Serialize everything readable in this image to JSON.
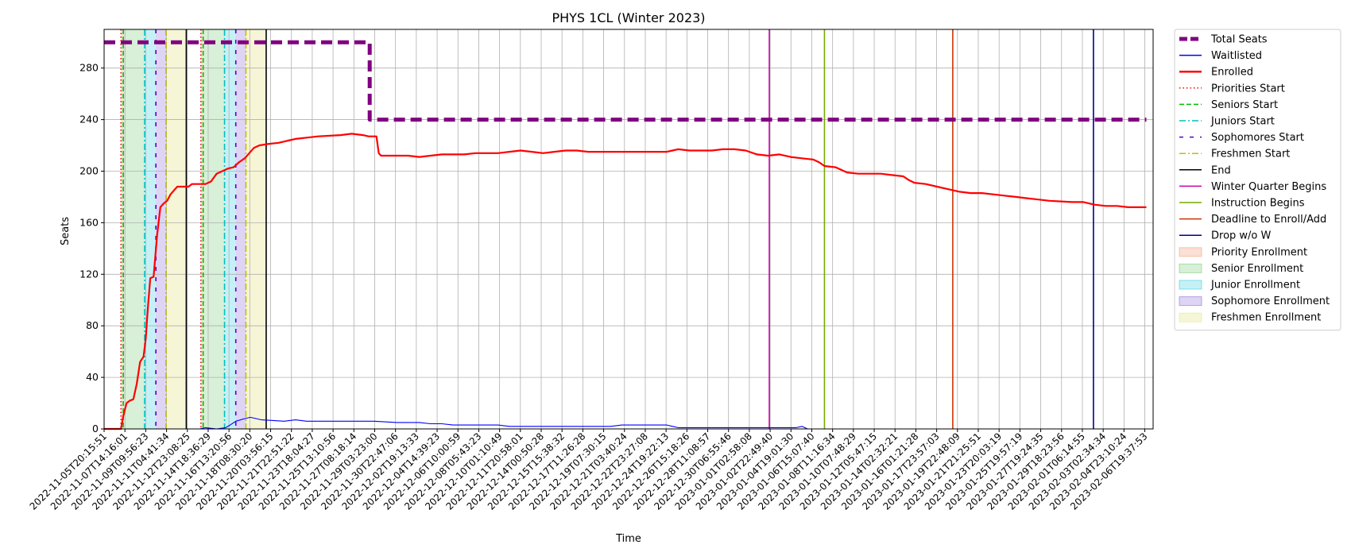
{
  "chart_data": {
    "type": "line",
    "title": "PHYS 1CL (Winter 2023)",
    "xlabel": "Time",
    "ylabel": "Seats",
    "x_range": [
      0,
      93.2
    ],
    "ylim": [
      0,
      310
    ],
    "y_ticks": [
      0,
      40,
      80,
      120,
      160,
      200,
      240,
      280
    ],
    "grid": true,
    "legend_position": "outside-right",
    "x_tick_labels": [
      "2022-11-05T20:15:51",
      "2022-11-07T14:16:01",
      "2022-11-09T09:56:23",
      "2022-11-11T04:41:34",
      "2022-11-12T23:08:25",
      "2022-11-14T18:36:29",
      "2022-11-16T13:20:56",
      "2022-11-18T08:30:20",
      "2022-11-20T03:56:15",
      "2022-11-21T22:51:22",
      "2022-11-23T18:04:27",
      "2022-11-25T13:10:56",
      "2022-11-27T08:18:14",
      "2022-11-29T03:23:00",
      "2022-11-30T22:47:06",
      "2022-12-02T19:13:33",
      "2022-12-04T14:39:23",
      "2022-12-06T10:00:59",
      "2022-12-08T05:43:23",
      "2022-12-10T01:10:49",
      "2022-12-11T20:58:01",
      "2022-12-14T00:50:28",
      "2022-12-15T15:38:32",
      "2022-12-17T11:26:28",
      "2022-12-19T07:30:15",
      "2022-12-21T03:40:24",
      "2022-12-22T23:27:08",
      "2022-12-24T19:22:13",
      "2022-12-26T15:18:26",
      "2022-12-28T11:08:57",
      "2022-12-30T06:55:46",
      "2023-01-01T02:58:08",
      "2023-01-02T22:49:40",
      "2023-01-04T19:01:30",
      "2023-01-06T15:07:40",
      "2023-01-08T11:16:34",
      "2023-01-10T07:48:29",
      "2023-01-12T05:47:15",
      "2023-01-14T02:32:21",
      "2023-01-16T01:21:28",
      "2023-01-17T23:57:03",
      "2023-01-19T22:48:09",
      "2023-01-21T21:25:51",
      "2023-01-23T20:03:19",
      "2023-01-25T19:57:19",
      "2023-01-27T19:24:35",
      "2023-01-29T18:23:56",
      "2023-02-01T06:14:55",
      "2023-02-03T02:34:34",
      "2023-02-04T23:10:24",
      "2023-02-06T19:37:53"
    ],
    "series": [
      {
        "name": "Total Seats",
        "color": "#800080",
        "style": "dashed-thick",
        "points": [
          [
            0,
            300
          ],
          [
            23.6,
            300
          ],
          [
            23.6,
            240
          ],
          [
            92.6,
            240
          ]
        ]
      },
      {
        "name": "Waitlisted",
        "color": "#0000ff",
        "style": "solid-thin",
        "points": [
          [
            0,
            0
          ],
          [
            8.5,
            0
          ],
          [
            9,
            1
          ],
          [
            10,
            0
          ],
          [
            10.8,
            1
          ],
          [
            11.2,
            3
          ],
          [
            11.7,
            6
          ],
          [
            12.5,
            8
          ],
          [
            13,
            9
          ],
          [
            13.5,
            8
          ],
          [
            14,
            7
          ],
          [
            16,
            6
          ],
          [
            17,
            7
          ],
          [
            18,
            6
          ],
          [
            22,
            6
          ],
          [
            24,
            6
          ],
          [
            26,
            5
          ],
          [
            28,
            5
          ],
          [
            29,
            4
          ],
          [
            30,
            4
          ],
          [
            31,
            3
          ],
          [
            35,
            3
          ],
          [
            36,
            2
          ],
          [
            45,
            2
          ],
          [
            46,
            3
          ],
          [
            50,
            3
          ],
          [
            50.5,
            2
          ],
          [
            51,
            1
          ],
          [
            60,
            1
          ],
          [
            61.5,
            1
          ],
          [
            62,
            2
          ],
          [
            62.5,
            0
          ],
          [
            92.6,
            0
          ]
        ]
      },
      {
        "name": "Enrolled",
        "color": "#ff0000",
        "style": "solid-thick",
        "points": [
          [
            0,
            0
          ],
          [
            1.5,
            0
          ],
          [
            1.7,
            10
          ],
          [
            2,
            20
          ],
          [
            2.3,
            22
          ],
          [
            2.6,
            23
          ],
          [
            2.9,
            35
          ],
          [
            3.2,
            52
          ],
          [
            3.5,
            56
          ],
          [
            3.7,
            70
          ],
          [
            3.9,
            95
          ],
          [
            4.1,
            117
          ],
          [
            4.4,
            118
          ],
          [
            4.7,
            150
          ],
          [
            5,
            172
          ],
          [
            5.3,
            175
          ],
          [
            5.6,
            177
          ],
          [
            5.9,
            182
          ],
          [
            6.2,
            185
          ],
          [
            6.5,
            188
          ],
          [
            7.5,
            188
          ],
          [
            7.8,
            190
          ],
          [
            9,
            190
          ],
          [
            9.5,
            192
          ],
          [
            10,
            198
          ],
          [
            10.5,
            200
          ],
          [
            11,
            202
          ],
          [
            11.5,
            203
          ],
          [
            12,
            207
          ],
          [
            12.5,
            210
          ],
          [
            12.9,
            214
          ],
          [
            13.3,
            218
          ],
          [
            13.8,
            220
          ],
          [
            14.5,
            221
          ],
          [
            15.5,
            222
          ],
          [
            16,
            223
          ],
          [
            16.5,
            224
          ],
          [
            17,
            225
          ],
          [
            18,
            226
          ],
          [
            19,
            227
          ],
          [
            21,
            228
          ],
          [
            22,
            229
          ],
          [
            23,
            228
          ],
          [
            23.5,
            227
          ],
          [
            24.2,
            227
          ],
          [
            24.4,
            214
          ],
          [
            24.6,
            212
          ],
          [
            27,
            212
          ],
          [
            28,
            211
          ],
          [
            29,
            212
          ],
          [
            30,
            213
          ],
          [
            32,
            213
          ],
          [
            33,
            214
          ],
          [
            35,
            214
          ],
          [
            36,
            215
          ],
          [
            37,
            216
          ],
          [
            38,
            215
          ],
          [
            39,
            214
          ],
          [
            40,
            215
          ],
          [
            41,
            216
          ],
          [
            42,
            216
          ],
          [
            43,
            215
          ],
          [
            46,
            215
          ],
          [
            48,
            215
          ],
          [
            49,
            215
          ],
          [
            50,
            215
          ],
          [
            50.5,
            216
          ],
          [
            51,
            217
          ],
          [
            52,
            216
          ],
          [
            54,
            216
          ],
          [
            55,
            217
          ],
          [
            56,
            217
          ],
          [
            57,
            216
          ],
          [
            58,
            213
          ],
          [
            59,
            212
          ],
          [
            60,
            213
          ],
          [
            61,
            211
          ],
          [
            62,
            210
          ],
          [
            63,
            209
          ],
          [
            63.5,
            207
          ],
          [
            64,
            204
          ],
          [
            65,
            203
          ],
          [
            65.5,
            201
          ],
          [
            66,
            199
          ],
          [
            67,
            198
          ],
          [
            69,
            198
          ],
          [
            70,
            197
          ],
          [
            71,
            196
          ],
          [
            71.5,
            193
          ],
          [
            72,
            191
          ],
          [
            73,
            190
          ],
          [
            74,
            188
          ],
          [
            75,
            186
          ],
          [
            76,
            184
          ],
          [
            77,
            183
          ],
          [
            78,
            183
          ],
          [
            79,
            182
          ],
          [
            80,
            181
          ],
          [
            81,
            180
          ],
          [
            82,
            179
          ],
          [
            83,
            178
          ],
          [
            84,
            177
          ],
          [
            86,
            176
          ],
          [
            87,
            176
          ],
          [
            88,
            174
          ],
          [
            89,
            173
          ],
          [
            90,
            173
          ],
          [
            91,
            172
          ],
          [
            92.6,
            172
          ]
        ]
      }
    ],
    "vertical_markers": [
      {
        "name": "Priorities Start",
        "color": "#ff0000",
        "style": "dotted",
        "x": [
          1.5,
          8.6
        ]
      },
      {
        "name": "Seniors Start",
        "color": "#00bb00",
        "style": "dashed",
        "x": [
          1.7,
          8.8
        ]
      },
      {
        "name": "Juniors Start",
        "color": "#00bfbf",
        "style": "dashdot",
        "x": [
          3.6,
          10.7
        ]
      },
      {
        "name": "Sophomores Start",
        "color": "#5500cc",
        "style": "loosedash",
        "x": [
          4.6,
          11.7
        ]
      },
      {
        "name": "Freshmen Start",
        "color": "#bfbf00",
        "style": "dashdot",
        "x": [
          5.5,
          12.6
        ]
      },
      {
        "name": "End",
        "color": "#000000",
        "style": "solid",
        "x": [
          7.3,
          14.4
        ]
      },
      {
        "name": "Winter Quarter Begins",
        "color": "#cc00aa",
        "style": "solid",
        "x": [
          59.1
        ]
      },
      {
        "name": "Instruction Begins",
        "color": "#77aa00",
        "style": "solid",
        "x": [
          64
        ]
      },
      {
        "name": "Deadline to Enroll/Add",
        "color": "#cc3300",
        "style": "solid",
        "x": [
          75.4
        ]
      },
      {
        "name": "Drop w/o W",
        "color": "#000088",
        "style": "solid",
        "x": [
          87.9
        ]
      }
    ],
    "shaded_regions": [
      {
        "name": "Priority Enrollment",
        "color": "#f4a582",
        "opacity": 0.35,
        "ranges": [
          [
            1.5,
            1.7
          ],
          [
            8.6,
            8.8
          ]
        ]
      },
      {
        "name": "Senior Enrollment",
        "color": "#7ccd7c",
        "opacity": 0.3,
        "ranges": [
          [
            1.7,
            3.6
          ],
          [
            8.8,
            10.7
          ]
        ]
      },
      {
        "name": "Junior Enrollment",
        "color": "#40d0e0",
        "opacity": 0.3,
        "ranges": [
          [
            3.6,
            4.6
          ],
          [
            10.7,
            11.7
          ]
        ]
      },
      {
        "name": "Sophomore Enrollment",
        "color": "#9370db",
        "opacity": 0.3,
        "ranges": [
          [
            4.6,
            5.5
          ],
          [
            11.7,
            12.6
          ]
        ]
      },
      {
        "name": "Freshmen Enrollment",
        "color": "#e6e68c",
        "opacity": 0.35,
        "ranges": [
          [
            5.5,
            7.3
          ],
          [
            12.6,
            14.4
          ]
        ]
      }
    ],
    "legend": [
      {
        "label": "Total Seats",
        "kind": "line",
        "color": "#800080",
        "style": "dashed-thick"
      },
      {
        "label": "Waitlisted",
        "kind": "line",
        "color": "#0000ff",
        "style": "solid-thin"
      },
      {
        "label": "Enrolled",
        "kind": "line",
        "color": "#ff0000",
        "style": "solid-thick"
      },
      {
        "label": "Priorities Start",
        "kind": "line",
        "color": "#ff0000",
        "style": "dotted"
      },
      {
        "label": "Seniors Start",
        "kind": "line",
        "color": "#00bb00",
        "style": "dashed"
      },
      {
        "label": "Juniors Start",
        "kind": "line",
        "color": "#00bfbf",
        "style": "dashdot"
      },
      {
        "label": "Sophomores Start",
        "kind": "line",
        "color": "#5500cc",
        "style": "loosedash"
      },
      {
        "label": "Freshmen Start",
        "kind": "line",
        "color": "#bfbf00",
        "style": "dashdot"
      },
      {
        "label": "End",
        "kind": "line",
        "color": "#000000",
        "style": "solid"
      },
      {
        "label": "Winter Quarter Begins",
        "kind": "line",
        "color": "#cc00aa",
        "style": "solid"
      },
      {
        "label": "Instruction Begins",
        "kind": "line",
        "color": "#77aa00",
        "style": "solid"
      },
      {
        "label": "Deadline to Enroll/Add",
        "kind": "line",
        "color": "#cc3300",
        "style": "solid"
      },
      {
        "label": "Drop w/o W",
        "kind": "line",
        "color": "#000088",
        "style": "solid"
      },
      {
        "label": "Priority Enrollment",
        "kind": "patch",
        "color": "#f4a582",
        "opacity": 0.35
      },
      {
        "label": "Senior Enrollment",
        "kind": "patch",
        "color": "#7ccd7c",
        "opacity": 0.3
      },
      {
        "label": "Junior Enrollment",
        "kind": "patch",
        "color": "#40d0e0",
        "opacity": 0.3
      },
      {
        "label": "Sophomore Enrollment",
        "kind": "patch",
        "color": "#9370db",
        "opacity": 0.3
      },
      {
        "label": "Freshmen Enrollment",
        "kind": "patch",
        "color": "#e6e68c",
        "opacity": 0.35
      }
    ]
  }
}
